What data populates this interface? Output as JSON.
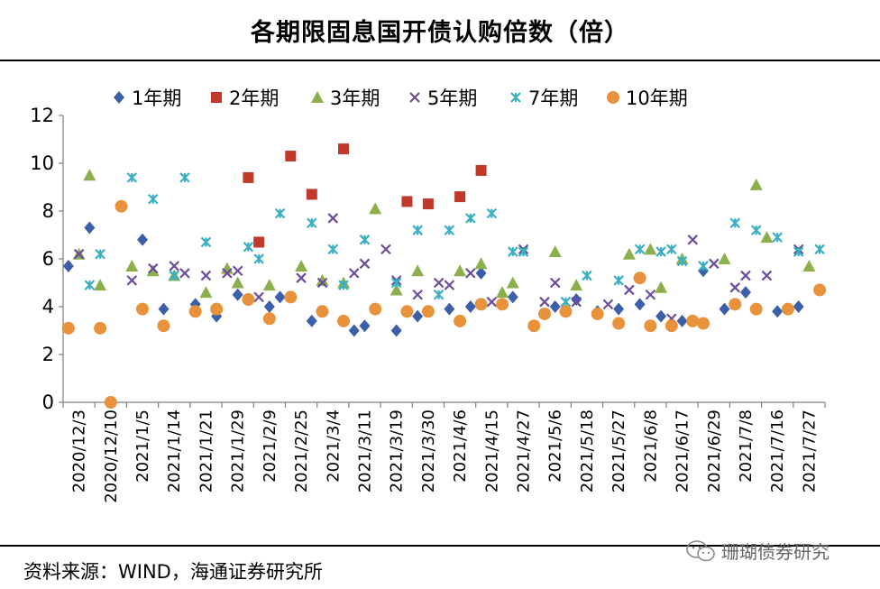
{
  "title": "各期限固息国开债认购倍数（倍）",
  "source": "资料来源：WIND，海通证券研究所",
  "watermark": "珊瑚债券研究",
  "chart_data": {
    "type": "scatter",
    "ylim": [
      0,
      12
    ],
    "yticks": [
      0,
      2,
      4,
      6,
      8,
      10,
      12
    ],
    "n_slots": 72,
    "x_tick_labels": [
      "2020/12/3",
      "2020/12/10",
      "2021/1/5",
      "2021/1/14",
      "2021/1/21",
      "2021/1/29",
      "2021/2/9",
      "2021/2/25",
      "2021/3/4",
      "2021/3/11",
      "2021/3/19",
      "2021/3/30",
      "2021/4/6",
      "2021/4/15",
      "2021/4/27",
      "2021/5/6",
      "2021/5/18",
      "2021/5/27",
      "2021/6/8",
      "2021/6/17",
      "2021/6/29",
      "2021/7/8",
      "2021/7/16",
      "2021/7/27"
    ],
    "series": [
      {
        "name": "1年期",
        "color": "#3D5FA8",
        "marker": "diamond",
        "points": [
          [
            0,
            5.7
          ],
          [
            2,
            7.3
          ],
          [
            7,
            6.8
          ],
          [
            9,
            3.9
          ],
          [
            12,
            4.1
          ],
          [
            14,
            3.6
          ],
          [
            16,
            4.5
          ],
          [
            19,
            4.0
          ],
          [
            20,
            4.4
          ],
          [
            23,
            3.4
          ],
          [
            27,
            3.0
          ],
          [
            28,
            3.2
          ],
          [
            31,
            3.0
          ],
          [
            33,
            3.6
          ],
          [
            36,
            3.9
          ],
          [
            38,
            4.0
          ],
          [
            39,
            5.4
          ],
          [
            42,
            4.4
          ],
          [
            46,
            4.0
          ],
          [
            48,
            4.3
          ],
          [
            50,
            3.8
          ],
          [
            52,
            3.9
          ],
          [
            54,
            4.1
          ],
          [
            56,
            3.6
          ],
          [
            58,
            3.4
          ],
          [
            60,
            5.5
          ],
          [
            62,
            3.9
          ],
          [
            64,
            4.6
          ],
          [
            67,
            3.8
          ],
          [
            69,
            4.0
          ]
        ]
      },
      {
        "name": "2年期",
        "color": "#C0392B",
        "marker": "square",
        "points": [
          [
            17,
            9.4
          ],
          [
            18,
            6.7
          ],
          [
            21,
            10.3
          ],
          [
            23,
            8.7
          ],
          [
            26,
            10.6
          ],
          [
            32,
            8.4
          ],
          [
            34,
            8.3
          ],
          [
            37,
            8.6
          ],
          [
            39,
            9.7
          ]
        ]
      },
      {
        "name": "3年期",
        "color": "#8BB04B",
        "marker": "triangle",
        "points": [
          [
            1,
            6.2
          ],
          [
            2,
            9.5
          ],
          [
            3,
            4.9
          ],
          [
            6,
            5.7
          ],
          [
            8,
            5.5
          ],
          [
            10,
            5.3
          ],
          [
            13,
            4.6
          ],
          [
            15,
            5.6
          ],
          [
            16,
            5.0
          ],
          [
            19,
            4.9
          ],
          [
            22,
            5.7
          ],
          [
            24,
            5.1
          ],
          [
            26,
            5.0
          ],
          [
            29,
            8.1
          ],
          [
            31,
            4.7
          ],
          [
            33,
            5.5
          ],
          [
            37,
            5.5
          ],
          [
            39,
            5.8
          ],
          [
            41,
            4.6
          ],
          [
            42,
            5.0
          ],
          [
            46,
            6.3
          ],
          [
            48,
            4.9
          ],
          [
            53,
            6.2
          ],
          [
            55,
            6.4
          ],
          [
            56,
            4.8
          ],
          [
            58,
            6.0
          ],
          [
            62,
            6.0
          ],
          [
            65,
            9.1
          ],
          [
            66,
            6.9
          ],
          [
            70,
            5.7
          ]
        ]
      },
      {
        "name": "5年期",
        "color": "#6E4C9C",
        "marker": "cross",
        "points": [
          [
            1,
            6.2
          ],
          [
            6,
            5.1
          ],
          [
            8,
            5.6
          ],
          [
            10,
            5.7
          ],
          [
            11,
            5.4
          ],
          [
            13,
            5.3
          ],
          [
            15,
            5.4
          ],
          [
            16,
            5.5
          ],
          [
            18,
            4.4
          ],
          [
            22,
            5.2
          ],
          [
            24,
            5.0
          ],
          [
            25,
            7.7
          ],
          [
            27,
            5.4
          ],
          [
            28,
            5.8
          ],
          [
            30,
            6.4
          ],
          [
            31,
            5.1
          ],
          [
            33,
            4.5
          ],
          [
            35,
            5.0
          ],
          [
            36,
            4.9
          ],
          [
            38,
            5.4
          ],
          [
            40,
            4.2
          ],
          [
            43,
            6.4
          ],
          [
            45,
            4.2
          ],
          [
            46,
            5.0
          ],
          [
            48,
            4.2
          ],
          [
            51,
            4.1
          ],
          [
            53,
            4.7
          ],
          [
            55,
            4.5
          ],
          [
            57,
            3.5
          ],
          [
            59,
            6.8
          ],
          [
            61,
            5.8
          ],
          [
            63,
            4.8
          ],
          [
            64,
            5.3
          ],
          [
            66,
            5.3
          ],
          [
            69,
            6.4
          ]
        ]
      },
      {
        "name": "7年期",
        "color": "#3AAFC2",
        "marker": "star",
        "points": [
          [
            2,
            4.9
          ],
          [
            3,
            6.2
          ],
          [
            6,
            9.4
          ],
          [
            8,
            8.5
          ],
          [
            10,
            5.3
          ],
          [
            11,
            9.4
          ],
          [
            13,
            6.7
          ],
          [
            17,
            6.5
          ],
          [
            18,
            6.0
          ],
          [
            20,
            7.9
          ],
          [
            23,
            7.5
          ],
          [
            25,
            6.4
          ],
          [
            26,
            4.9
          ],
          [
            28,
            6.8
          ],
          [
            31,
            5.0
          ],
          [
            33,
            7.2
          ],
          [
            35,
            4.5
          ],
          [
            36,
            7.2
          ],
          [
            38,
            7.7
          ],
          [
            40,
            7.9
          ],
          [
            42,
            6.3
          ],
          [
            43,
            6.3
          ],
          [
            47,
            4.2
          ],
          [
            49,
            5.3
          ],
          [
            52,
            5.1
          ],
          [
            54,
            6.4
          ],
          [
            56,
            6.3
          ],
          [
            57,
            6.4
          ],
          [
            58,
            5.9
          ],
          [
            60,
            5.7
          ],
          [
            63,
            7.5
          ],
          [
            65,
            7.2
          ],
          [
            67,
            6.9
          ],
          [
            69,
            6.3
          ],
          [
            71,
            6.4
          ]
        ]
      },
      {
        "name": "10年期",
        "color": "#E8923C",
        "marker": "circle",
        "points": [
          [
            0,
            3.1
          ],
          [
            3,
            3.1
          ],
          [
            4,
            0.0
          ],
          [
            5,
            8.2
          ],
          [
            7,
            3.9
          ],
          [
            9,
            3.2
          ],
          [
            12,
            3.8
          ],
          [
            14,
            3.9
          ],
          [
            17,
            4.3
          ],
          [
            19,
            3.5
          ],
          [
            21,
            4.4
          ],
          [
            24,
            3.8
          ],
          [
            26,
            3.4
          ],
          [
            29,
            3.9
          ],
          [
            32,
            3.8
          ],
          [
            34,
            3.8
          ],
          [
            37,
            3.4
          ],
          [
            39,
            4.1
          ],
          [
            41,
            4.1
          ],
          [
            44,
            3.2
          ],
          [
            45,
            3.7
          ],
          [
            47,
            3.8
          ],
          [
            50,
            3.7
          ],
          [
            52,
            3.3
          ],
          [
            54,
            5.2
          ],
          [
            55,
            3.2
          ],
          [
            57,
            3.2
          ],
          [
            59,
            3.4
          ],
          [
            60,
            3.3
          ],
          [
            63,
            4.1
          ],
          [
            65,
            3.9
          ],
          [
            68,
            3.9
          ],
          [
            71,
            4.7
          ]
        ]
      }
    ]
  }
}
